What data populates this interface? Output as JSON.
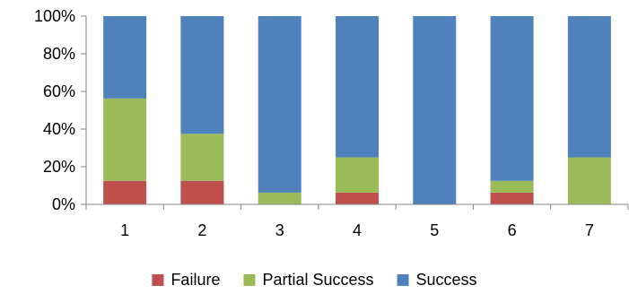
{
  "chart_data": {
    "type": "bar",
    "stacked": true,
    "normalized": true,
    "categories": [
      "1",
      "2",
      "3",
      "4",
      "5",
      "6",
      "7"
    ],
    "series": [
      {
        "name": "Failure",
        "color": "#C0504D",
        "values": [
          12.5,
          12.5,
          0,
          6.25,
          0,
          6.25,
          0
        ]
      },
      {
        "name": "Partial Success",
        "color": "#9BBB59",
        "values": [
          43.75,
          25,
          6.25,
          18.75,
          0,
          6.25,
          25
        ]
      },
      {
        "name": "Success",
        "color": "#4F81BD",
        "values": [
          43.75,
          62.5,
          93.75,
          75,
          100,
          87.5,
          75
        ]
      }
    ],
    "y_ticks": [
      "0%",
      "20%",
      "40%",
      "60%",
      "80%",
      "100%"
    ],
    "y_tick_values": [
      0,
      20,
      40,
      60,
      80,
      100
    ],
    "ylim": [
      0,
      100
    ],
    "grid": false,
    "legend_position": "bottom",
    "axis_color": "#868686"
  }
}
